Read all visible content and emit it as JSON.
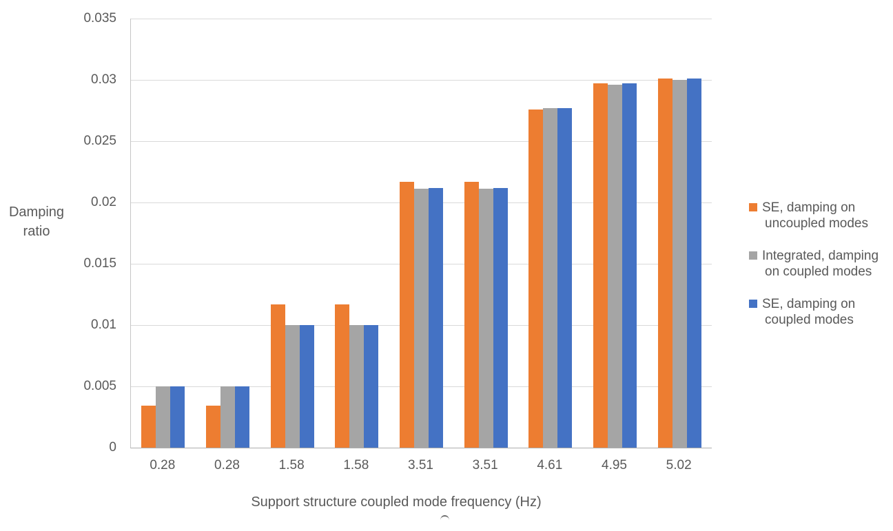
{
  "chart_data": {
    "type": "bar",
    "title": "",
    "categories": [
      "0.28",
      "0.28",
      "1.58",
      "1.58",
      "3.51",
      "3.51",
      "4.61",
      "4.95",
      "5.02"
    ],
    "series": [
      {
        "name": "SE, damping on uncoupled modes",
        "color": "#ED7D31",
        "values": [
          0.0034,
          0.0034,
          0.0117,
          0.0117,
          0.0217,
          0.0217,
          0.0276,
          0.0297,
          0.0301
        ]
      },
      {
        "name": "Integrated, damping on coupled modes",
        "color": "#A5A5A5",
        "values": [
          0.005,
          0.005,
          0.01,
          0.01,
          0.0211,
          0.0211,
          0.0277,
          0.0296,
          0.03
        ]
      },
      {
        "name": "SE, damping on coupled modes",
        "color": "#4472C4",
        "values": [
          0.005,
          0.005,
          0.01,
          0.01,
          0.0212,
          0.0212,
          0.0277,
          0.0297,
          0.0301
        ]
      }
    ],
    "xlabel": "Support structure coupled mode frequency (Hz)",
    "ylabel": "Damping ratio",
    "ylabel_lines": [
      "Damping",
      "ratio"
    ],
    "ylim": [
      0,
      0.035
    ],
    "ytick_step": 0.005,
    "yticks": [
      {
        "label": "0.035",
        "value": 0.035
      },
      {
        "label": "0.03",
        "value": 0.03
      },
      {
        "label": "0.025",
        "value": 0.025
      },
      {
        "label": "0.02",
        "value": 0.02
      },
      {
        "label": "0.015",
        "value": 0.015
      },
      {
        "label": "0.01",
        "value": 0.01
      },
      {
        "label": "0.005",
        "value": 0.005
      },
      {
        "label": "0",
        "value": 0
      }
    ],
    "grid": true,
    "legend_position": "right"
  },
  "legend": [
    {
      "label_lines": [
        "SE, damping on",
        "uncoupled modes"
      ],
      "color": "#ED7D31"
    },
    {
      "label_lines": [
        "Integrated, damping",
        "on coupled modes"
      ],
      "color": "#A5A5A5"
    },
    {
      "label_lines": [
        "SE, damping on",
        "coupled modes"
      ],
      "color": "#4472C4"
    }
  ],
  "style_colors": {
    "background": "#FFFFFF",
    "text": "#595959",
    "gridline": "#D9D9D9",
    "axis_line": "#ADADAD"
  }
}
